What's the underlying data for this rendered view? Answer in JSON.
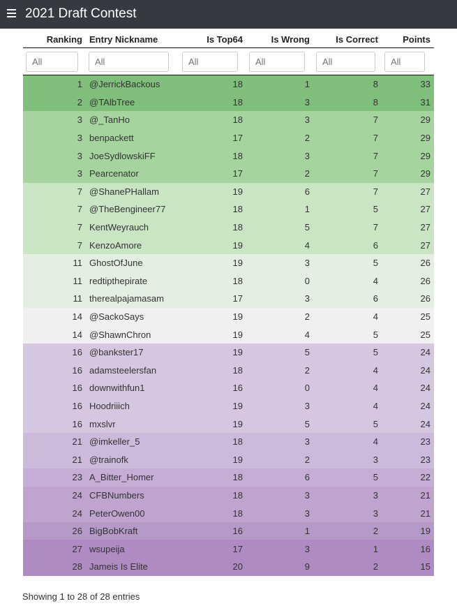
{
  "app": {
    "title": "2021 Draft Contest"
  },
  "table": {
    "columns": [
      "Ranking",
      "Entry Nickname",
      "Is Top64",
      "Is Wrong",
      "Is Correct",
      "Points"
    ],
    "filter_placeholder": "All",
    "rows": [
      {
        "ranking": "1",
        "nickname": "@JerrickBackous",
        "top64": "18",
        "wrong": "1",
        "correct": "8",
        "points": "33",
        "color": "#7fbf7b"
      },
      {
        "ranking": "2",
        "nickname": "@TAlbTree",
        "top64": "18",
        "wrong": "3",
        "correct": "8",
        "points": "31",
        "color": "#7fbf7b"
      },
      {
        "ranking": "3",
        "nickname": "@_TanHo",
        "top64": "18",
        "wrong": "3",
        "correct": "7",
        "points": "29",
        "color": "#a6d49f"
      },
      {
        "ranking": "3",
        "nickname": "benpackett",
        "top64": "17",
        "wrong": "2",
        "correct": "7",
        "points": "29",
        "color": "#a6d49f"
      },
      {
        "ranking": "3",
        "nickname": "JoeSydlowskiFF",
        "top64": "18",
        "wrong": "3",
        "correct": "7",
        "points": "29",
        "color": "#a6d49f"
      },
      {
        "ranking": "3",
        "nickname": "Pearcenator",
        "top64": "17",
        "wrong": "2",
        "correct": "7",
        "points": "29",
        "color": "#a6d49f"
      },
      {
        "ranking": "7",
        "nickname": "@ShanePHallam",
        "top64": "19",
        "wrong": "6",
        "correct": "7",
        "points": "27",
        "color": "#c9e5c4"
      },
      {
        "ranking": "7",
        "nickname": "@TheBengineer77",
        "top64": "18",
        "wrong": "1",
        "correct": "5",
        "points": "27",
        "color": "#c9e5c4"
      },
      {
        "ranking": "7",
        "nickname": "KentWeyrauch",
        "top64": "18",
        "wrong": "5",
        "correct": "7",
        "points": "27",
        "color": "#c9e5c4"
      },
      {
        "ranking": "7",
        "nickname": "KenzoAmore",
        "top64": "19",
        "wrong": "4",
        "correct": "6",
        "points": "27",
        "color": "#c9e5c4"
      },
      {
        "ranking": "11",
        "nickname": "GhostOfJune",
        "top64": "19",
        "wrong": "3",
        "correct": "5",
        "points": "26",
        "color": "#e4efe1"
      },
      {
        "ranking": "11",
        "nickname": "redtipthepirate",
        "top64": "18",
        "wrong": "0",
        "correct": "4",
        "points": "26",
        "color": "#e4efe1"
      },
      {
        "ranking": "11",
        "nickname": "therealpajamasam",
        "top64": "17",
        "wrong": "3",
        "correct": "6",
        "points": "26",
        "color": "#e4efe1"
      },
      {
        "ranking": "14",
        "nickname": "@SackoSays",
        "top64": "19",
        "wrong": "2",
        "correct": "4",
        "points": "25",
        "color": "#f1eff2"
      },
      {
        "ranking": "14",
        "nickname": "@ShawnChron",
        "top64": "19",
        "wrong": "4",
        "correct": "5",
        "points": "25",
        "color": "#f1eff2"
      },
      {
        "ranking": "16",
        "nickname": "@bankster17",
        "top64": "19",
        "wrong": "5",
        "correct": "5",
        "points": "24",
        "color": "#d7c6e0"
      },
      {
        "ranking": "16",
        "nickname": "adamsteelersfan",
        "top64": "18",
        "wrong": "2",
        "correct": "4",
        "points": "24",
        "color": "#d7c6e0"
      },
      {
        "ranking": "16",
        "nickname": "downwithfun1",
        "top64": "16",
        "wrong": "0",
        "correct": "4",
        "points": "24",
        "color": "#d7c6e0"
      },
      {
        "ranking": "16",
        "nickname": "Hoodriiich",
        "top64": "19",
        "wrong": "3",
        "correct": "4",
        "points": "24",
        "color": "#d7c6e0"
      },
      {
        "ranking": "16",
        "nickname": "mxslvr",
        "top64": "19",
        "wrong": "5",
        "correct": "5",
        "points": "24",
        "color": "#d7c6e0"
      },
      {
        "ranking": "21",
        "nickname": "@imkeller_5",
        "top64": "18",
        "wrong": "3",
        "correct": "4",
        "points": "23",
        "color": "#cdb9da"
      },
      {
        "ranking": "21",
        "nickname": "@trainofk",
        "top64": "19",
        "wrong": "2",
        "correct": "3",
        "points": "23",
        "color": "#cdb9da"
      },
      {
        "ranking": "23",
        "nickname": "A_Bitter_Homer",
        "top64": "18",
        "wrong": "6",
        "correct": "5",
        "points": "22",
        "color": "#c5add5"
      },
      {
        "ranking": "24",
        "nickname": "CFBNumbers",
        "top64": "18",
        "wrong": "3",
        "correct": "3",
        "points": "21",
        "color": "#bea4cf"
      },
      {
        "ranking": "24",
        "nickname": "PeterOwen00",
        "top64": "18",
        "wrong": "3",
        "correct": "3",
        "points": "21",
        "color": "#bea4cf"
      },
      {
        "ranking": "26",
        "nickname": "BigBobKraft",
        "top64": "16",
        "wrong": "1",
        "correct": "2",
        "points": "19",
        "color": "#b59ac9"
      },
      {
        "ranking": "27",
        "nickname": "wsupeija",
        "top64": "17",
        "wrong": "3",
        "correct": "1",
        "points": "16",
        "color": "#ae8bc3"
      },
      {
        "ranking": "28",
        "nickname": "Jameis Is Elite",
        "top64": "20",
        "wrong": "9",
        "correct": "2",
        "points": "15",
        "color": "#ae8bc3"
      }
    ]
  },
  "footer": {
    "info": "Showing 1 to 28 of 28 entries"
  }
}
